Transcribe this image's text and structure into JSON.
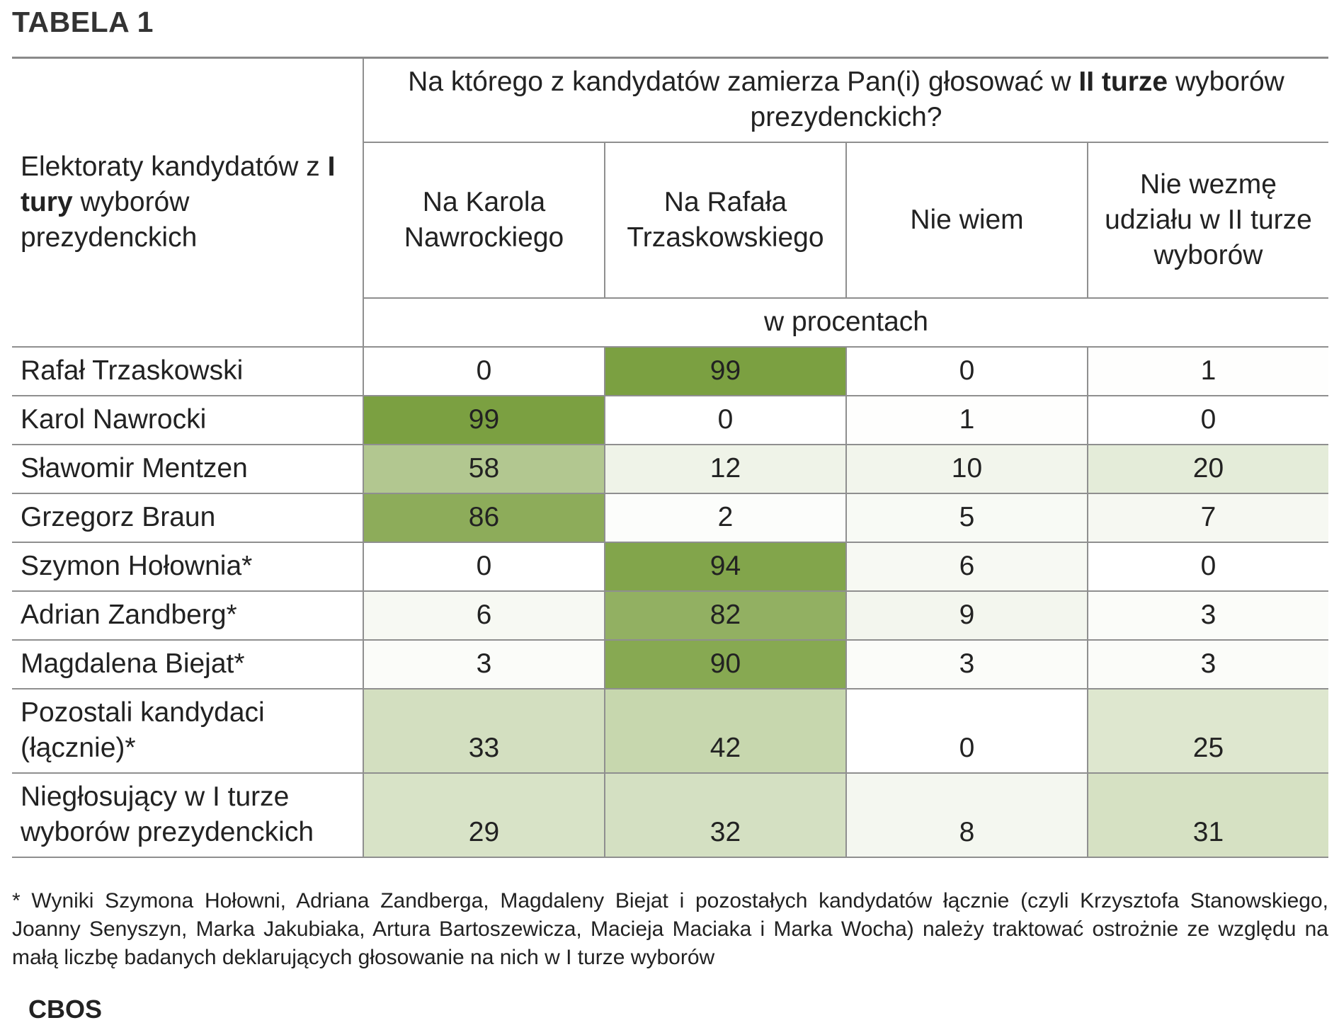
{
  "title": "TABELA 1",
  "chart_data": {
    "type": "table",
    "question": {
      "before": "Na którego z kandydatów zamierza Pan(i) głosować w ",
      "bold": "II turze",
      "after": " wyborów prezydenckich?"
    },
    "row_header": {
      "before": "Elektoraty kandydatów z ",
      "bold": "I tury",
      "after": " wyborów prezydenckich"
    },
    "columns": [
      "Na Karola Nawrockiego",
      "Na Rafała Trzaskowskiego",
      "Nie wiem",
      "Nie wezmę udziału w II turze wyborów"
    ],
    "unit": "w procentach",
    "rows": [
      {
        "label": "Rafał Trzaskowski",
        "values": [
          0,
          99,
          0,
          1
        ]
      },
      {
        "label": "Karol Nawrocki",
        "values": [
          99,
          0,
          1,
          0
        ]
      },
      {
        "label": "Sławomir Mentzen",
        "values": [
          58,
          12,
          10,
          20
        ]
      },
      {
        "label": "Grzegorz Braun",
        "values": [
          86,
          2,
          5,
          7
        ]
      },
      {
        "label": "Szymon Hołownia*",
        "values": [
          0,
          94,
          6,
          0
        ]
      },
      {
        "label": "Adrian Zandberg*",
        "values": [
          6,
          82,
          9,
          3
        ]
      },
      {
        "label": "Magdalena Biejat*",
        "values": [
          3,
          90,
          3,
          3
        ]
      },
      {
        "label": "Pozostali kandydaci (łącznie)*",
        "values": [
          33,
          42,
          0,
          25
        ]
      },
      {
        "label": "Niegłosujący w I turze wyborów prezydenckich",
        "values": [
          29,
          32,
          8,
          31
        ]
      }
    ],
    "heat_color": "#7a9f3f",
    "heat_min_color": "#ffffff"
  },
  "footnote": "* Wyniki Szymona Hołowni, Adriana Zandberga, Magdaleny Biejat i pozostałych kandydatów łącznie (czyli Krzysztofa Stanowskiego, Joanny Senyszyn, Marka Jakubiaka, Artura Bartoszewicza, Macieja Maciaka i Marka Wocha) należy traktować ostrożnie ze względu na małą liczbę badanych deklarujących głosowanie na nich w I turze wyborów",
  "source": "CBOS"
}
